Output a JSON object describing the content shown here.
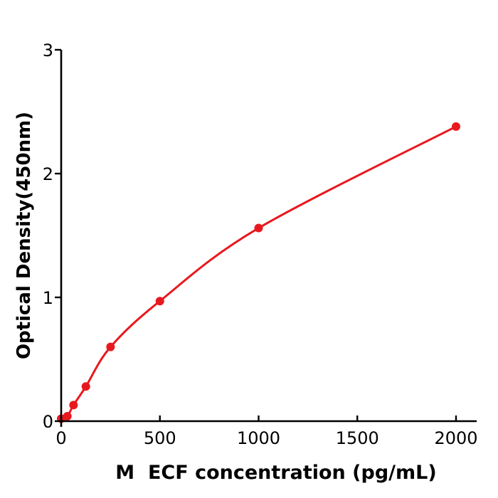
{
  "chart_data": {
    "type": "scatter",
    "title": "",
    "xlabel": "M  ECF concentration (pg/mL)",
    "ylabel": "Optical Density(450nm)",
    "x": [
      0,
      31.25,
      62.5,
      125,
      250,
      500,
      1000,
      2000
    ],
    "y": [
      0.02,
      0.04,
      0.13,
      0.28,
      0.6,
      0.97,
      1.56,
      2.38
    ],
    "curve": "smooth-fit-through-points",
    "x_ticks": [
      {
        "value": 0,
        "label": "0"
      },
      {
        "value": 500,
        "label": "500"
      },
      {
        "value": 1000,
        "label": "1000"
      },
      {
        "value": 1500,
        "label": "1500"
      },
      {
        "value": 2000,
        "label": "2000"
      }
    ],
    "y_ticks": [
      {
        "value": 0,
        "label": "0"
      },
      {
        "value": 1,
        "label": "1"
      },
      {
        "value": 2,
        "label": "2"
      },
      {
        "value": 3,
        "label": "3"
      }
    ],
    "xlim": [
      0,
      2105
    ],
    "ylim": [
      0,
      3
    ],
    "grid": false,
    "legend": false,
    "colors": {
      "line": "#e8191e",
      "marker": "#e8191e",
      "axis": "#000000",
      "text": "#000000",
      "background": "#ffffff"
    }
  }
}
